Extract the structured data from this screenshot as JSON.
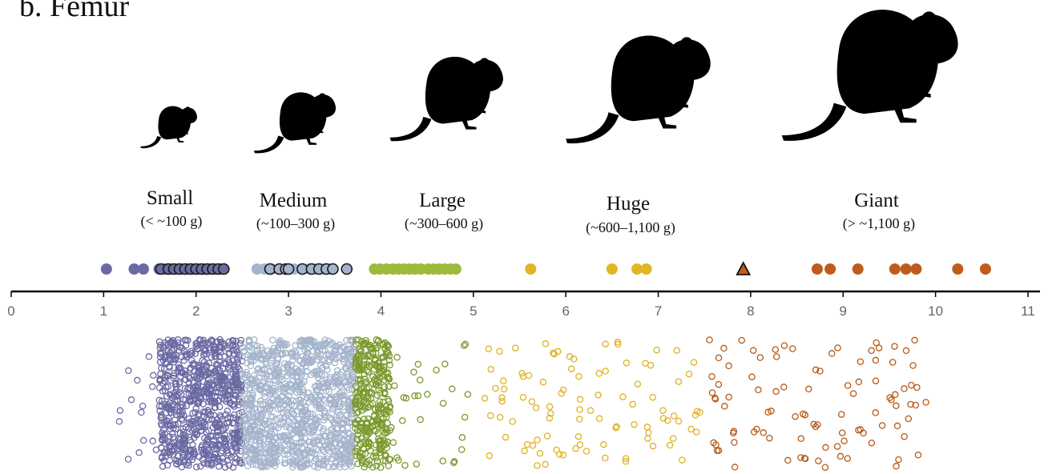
{
  "panel_title": "b. Femur",
  "colors": {
    "small": "#6b6aa3",
    "medium": "#a4b4cc",
    "large": "#9fb93a",
    "huge": "#e2b526",
    "giant": "#bf5b1c",
    "large_hollow": "#7b9a2e",
    "huge_hollow": "#e0b123",
    "giant_hollow": "#b85a18"
  },
  "chart_data": {
    "type": "scatter",
    "title": "b. Femur",
    "xlabel": "",
    "ylabel": "",
    "xlim": [
      0,
      11
    ],
    "x_ticks": [
      "0",
      "1",
      "2",
      "3",
      "4",
      "5",
      "6",
      "7",
      "8",
      "9",
      "10",
      "11"
    ],
    "grid": false,
    "size_categories": [
      {
        "name": "Small",
        "range": "(< ~100 g)",
        "x_from": 1.0,
        "x_to": 2.5,
        "color": "#6b6aa3"
      },
      {
        "name": "Medium",
        "range": "(~100–300 g)",
        "x_from": 2.5,
        "x_to": 3.7,
        "color": "#a4b4cc"
      },
      {
        "name": "Large",
        "range": "(~300–600 g)",
        "x_from": 3.7,
        "x_to": 5.2,
        "color": "#9fb93a"
      },
      {
        "name": "Huge",
        "range": "(~600–1,100 g)",
        "x_from": 5.2,
        "x_to": 7.5,
        "color": "#e2b526"
      },
      {
        "name": "Giant",
        "range": "(> ~1,100 g)",
        "x_from": 7.5,
        "x_to": 11.0,
        "color": "#bf5b1c"
      }
    ],
    "upper_series": [
      {
        "category": "Small",
        "color": "#6b6aa3",
        "filled": [
          1.03,
          1.33,
          1.43,
          1.6,
          1.66,
          1.72,
          1.78,
          1.84,
          1.9,
          1.96,
          2.02,
          2.08,
          2.14,
          2.2,
          2.26,
          2.3
        ],
        "outlined": [
          1.62,
          1.7,
          1.76,
          1.82,
          1.88,
          1.94,
          2.0,
          2.06,
          2.12,
          2.18,
          2.24,
          2.3
        ]
      },
      {
        "category": "Medium",
        "color": "#a4b4cc",
        "filled": [
          2.66,
          2.74,
          2.82,
          2.9,
          2.98,
          3.06,
          3.14,
          3.22,
          3.3,
          3.38,
          3.46
        ],
        "outlined": [
          2.8,
          2.9,
          2.97,
          3.0,
          3.15,
          3.25,
          3.33,
          3.41,
          3.48,
          3.63
        ]
      },
      {
        "category": "Large",
        "color": "#9fb93a",
        "filled": [
          3.93,
          3.99,
          4.06,
          4.13,
          4.19,
          4.25,
          4.31,
          4.37,
          4.43,
          4.51,
          4.57,
          4.63,
          4.69,
          4.75,
          4.81
        ],
        "outlined": []
      },
      {
        "category": "Huge",
        "color": "#e2b526",
        "filled": [
          5.62,
          6.5,
          6.77,
          6.87
        ],
        "outlined": []
      },
      {
        "category": "Giant",
        "color": "#bf5b1c",
        "filled": [
          8.72,
          8.86,
          9.16,
          9.56,
          9.68,
          9.79,
          10.24,
          10.54
        ],
        "outlined": []
      }
    ],
    "upper_special_point": {
      "shape": "triangle",
      "x": 7.92,
      "color": "#bf5b1c"
    },
    "lower_cloud": [
      {
        "category": "Small",
        "color": "#6b6aa3",
        "x_from": 1.15,
        "x_to": 2.5,
        "dense_from": 1.6,
        "dense_to": 2.5
      },
      {
        "category": "Medium",
        "color": "#a4b4cc",
        "x_from": 2.5,
        "x_to": 3.72,
        "dense_from": 2.5,
        "dense_to": 3.72
      },
      {
        "category": "Large",
        "color": "#7b9a2e",
        "x_from": 3.72,
        "x_to": 5.0,
        "dense_from": 3.72,
        "dense_to": 4.1
      },
      {
        "category": "Huge",
        "color": "#e0b123",
        "x_from": 5.1,
        "x_to": 7.5,
        "dense_from": 5.1,
        "dense_to": 5.1
      },
      {
        "category": "Giant",
        "color": "#b85a18",
        "x_from": 7.5,
        "x_to": 9.9,
        "dense_from": 7.5,
        "dense_to": 7.5
      }
    ]
  }
}
